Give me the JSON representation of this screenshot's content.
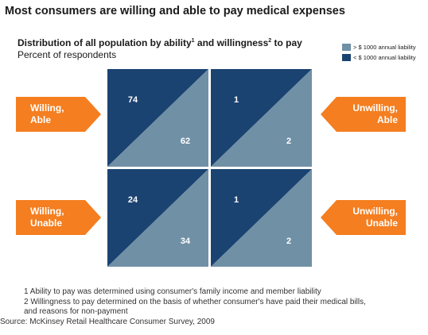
{
  "headline": "Most consumers are willing and able to pay medical expenses",
  "chart_title_parts": {
    "part1": "Distribution of all population by ability",
    "sup1": "1",
    "part2": " and willingness",
    "sup2": "2",
    "part3": " to pay"
  },
  "chart_subtitle": "Percent of respondents",
  "legend": [
    {
      "label": "> $ 1000 annual liability",
      "color": "#7090a6"
    },
    {
      "label": "< $ 1000 annual liability",
      "color": "#1b4371"
    }
  ],
  "side_labels": {
    "willing_able": [
      "Willing,",
      "Able"
    ],
    "willing_unable": [
      "Willing,",
      "Unable"
    ],
    "unwilling_able": [
      "Unwilling,",
      "Able"
    ],
    "unwilling_unable": [
      "Unwilling,",
      "Unable"
    ]
  },
  "footnotes": [
    "1  Ability to pay was determined using consumer's family income and member liability",
    "2  Willingness to pay determined on the basis of whether consumer's have paid their medical bills,",
    "    and reasons for non-payment"
  ],
  "source": "Source:  McKinsey Retail Healthcare Consumer Survey, 2009",
  "chart_data": {
    "type": "table",
    "rows": [
      "Able",
      "Unable"
    ],
    "columns": [
      "Willing",
      "Unwilling"
    ],
    "series": [
      {
        "name": "< $ 1000 annual liability",
        "values": [
          [
            74,
            1
          ],
          [
            24,
            1
          ]
        ]
      },
      {
        "name": "> $ 1000 annual liability",
        "values": [
          [
            62,
            2
          ],
          [
            34,
            2
          ]
        ]
      }
    ],
    "colors": {
      "low_liability": "#1b4371",
      "high_liability": "#7090a6"
    }
  }
}
